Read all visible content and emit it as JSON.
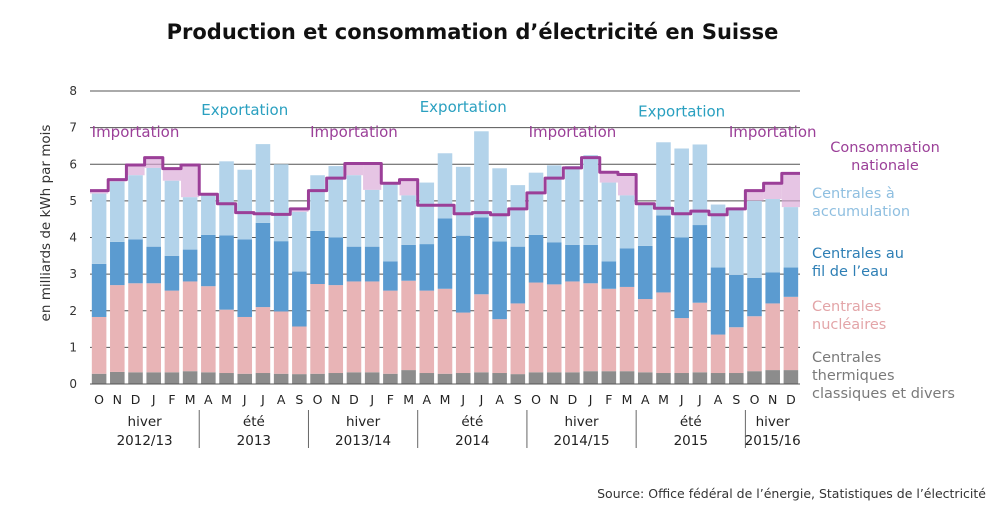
{
  "chart_data": {
    "type": "bar",
    "title": "Production et consommation d’électricité en Suisse",
    "ylabel": "en milliards de kWh par mois",
    "ylim": [
      0,
      8
    ],
    "y_ticks": [
      "0",
      "1",
      "2",
      "3",
      "4",
      "5",
      "6",
      "7",
      "8"
    ],
    "grid": true,
    "stacked": true,
    "categories": [
      "O",
      "N",
      "D",
      "J",
      "F",
      "M",
      "A",
      "M",
      "J",
      "J",
      "A",
      "S",
      "O",
      "N",
      "D",
      "J",
      "F",
      "M",
      "A",
      "M",
      "J",
      "J",
      "A",
      "S",
      "O",
      "N",
      "D",
      "J",
      "F",
      "M",
      "A",
      "M",
      "J",
      "J",
      "A",
      "S",
      "O",
      "N",
      "D"
    ],
    "series": [
      {
        "name": "Centrales thermiques classiques et divers",
        "color": "#8c8c8c",
        "values": [
          0.28,
          0.33,
          0.32,
          0.32,
          0.32,
          0.35,
          0.32,
          0.3,
          0.28,
          0.3,
          0.28,
          0.27,
          0.28,
          0.3,
          0.32,
          0.32,
          0.28,
          0.38,
          0.3,
          0.28,
          0.3,
          0.32,
          0.3,
          0.27,
          0.32,
          0.32,
          0.32,
          0.35,
          0.35,
          0.35,
          0.32,
          0.3,
          0.3,
          0.32,
          0.3,
          0.3,
          0.35,
          0.38,
          0.38
        ]
      },
      {
        "name": "Centrales nucléaires",
        "color": "#e8b4b6",
        "values": [
          1.55,
          2.37,
          2.43,
          2.43,
          2.23,
          2.45,
          2.35,
          1.73,
          1.55,
          1.8,
          1.7,
          1.3,
          2.45,
          2.4,
          2.48,
          2.48,
          2.27,
          2.44,
          2.25,
          2.32,
          1.65,
          2.13,
          1.47,
          1.93,
          2.45,
          2.4,
          2.48,
          2.4,
          2.25,
          2.3,
          2.0,
          2.2,
          1.5,
          1.9,
          1.05,
          1.25,
          1.5,
          1.82,
          2.0
        ]
      },
      {
        "name": "Centrales au fil de l’eau",
        "color": "#5b9bd0",
        "values": [
          1.45,
          1.18,
          1.2,
          1.0,
          0.95,
          0.87,
          1.4,
          2.03,
          2.12,
          2.3,
          1.92,
          1.5,
          1.45,
          1.3,
          0.95,
          0.95,
          0.8,
          0.98,
          1.27,
          1.92,
          2.1,
          2.1,
          2.12,
          1.55,
          1.3,
          1.15,
          1.0,
          1.05,
          0.75,
          1.05,
          1.45,
          2.1,
          2.2,
          2.12,
          1.83,
          1.43,
          1.05,
          0.85,
          0.8
        ]
      },
      {
        "name": "Centrales à accumulation",
        "color": "#b3d3ea",
        "values": [
          1.92,
          1.65,
          1.75,
          2.15,
          2.05,
          1.43,
          1.13,
          2.02,
          1.9,
          2.15,
          2.1,
          1.63,
          1.52,
          1.95,
          1.95,
          1.55,
          2.15,
          1.35,
          1.68,
          1.78,
          1.88,
          2.35,
          2.0,
          1.68,
          1.7,
          2.1,
          2.15,
          2.45,
          2.15,
          1.45,
          1.18,
          2.0,
          2.43,
          2.2,
          1.72,
          1.82,
          2.1,
          2.0,
          1.65
        ]
      }
    ],
    "consumption": {
      "name": "Consommation nationale",
      "color": "#9b3f98",
      "values": [
        5.28,
        5.58,
        5.98,
        6.18,
        5.88,
        5.98,
        5.18,
        4.92,
        4.68,
        4.65,
        4.63,
        4.78,
        5.28,
        5.62,
        6.02,
        6.02,
        5.48,
        5.58,
        4.88,
        4.88,
        4.65,
        4.68,
        4.62,
        4.78,
        5.22,
        5.62,
        5.9,
        6.18,
        5.78,
        5.72,
        4.92,
        4.8,
        4.65,
        4.72,
        4.62,
        4.78,
        5.28,
        5.48,
        5.75
      ]
    },
    "seasons": [
      {
        "line1": "hiver",
        "line2": "2012/13",
        "start": 0,
        "end": 6
      },
      {
        "line1": "été",
        "line2": "2013",
        "start": 6,
        "end": 12
      },
      {
        "line1": "hiver",
        "line2": "2013/14",
        "start": 12,
        "end": 18
      },
      {
        "line1": "été",
        "line2": "2014",
        "start": 18,
        "end": 24
      },
      {
        "line1": "hiver",
        "line2": "2014/15",
        "start": 24,
        "end": 30
      },
      {
        "line1": "été",
        "line2": "2015",
        "start": 30,
        "end": 36
      },
      {
        "line1": "hiver",
        "line2": "2015/16",
        "start": 36,
        "end": 39
      }
    ],
    "annotations": [
      {
        "text": "Importation",
        "color": "#9b3f98",
        "at_index": 2.5,
        "y": 6.75
      },
      {
        "text": "Exportation",
        "color": "#2aa0c0",
        "at_index": 8.5,
        "y": 7.35
      },
      {
        "text": "Importation",
        "color": "#9b3f98",
        "at_index": 14.5,
        "y": 6.75
      },
      {
        "text": "Exportation",
        "color": "#2aa0c0",
        "at_index": 20.5,
        "y": 7.42
      },
      {
        "text": "Importation",
        "color": "#9b3f98",
        "at_index": 26.5,
        "y": 6.75
      },
      {
        "text": "Exportation",
        "color": "#2aa0c0",
        "at_index": 32.5,
        "y": 7.3
      },
      {
        "text": "Importation",
        "color": "#9b3f98",
        "at_index": 37.5,
        "y": 6.75
      }
    ],
    "legend": [
      {
        "lines": [
          "Consommation",
          "nationale"
        ],
        "color": "#9b3f98"
      },
      {
        "lines": [
          "Centrales à",
          "accumulation"
        ],
        "color": "#8fbfe0"
      },
      {
        "lines": [
          "Centrales au",
          "fil de l’eau"
        ],
        "color": "#2e7fb5"
      },
      {
        "lines": [
          "Centrales",
          "nucléaires"
        ],
        "color": "#e3a5a8"
      },
      {
        "lines": [
          "Centrales",
          "thermiques",
          "classiques et divers"
        ],
        "color": "#7a7a7a"
      }
    ],
    "source": "Source: Office fédéral de l’énergie, Statistiques de l’électricité"
  }
}
